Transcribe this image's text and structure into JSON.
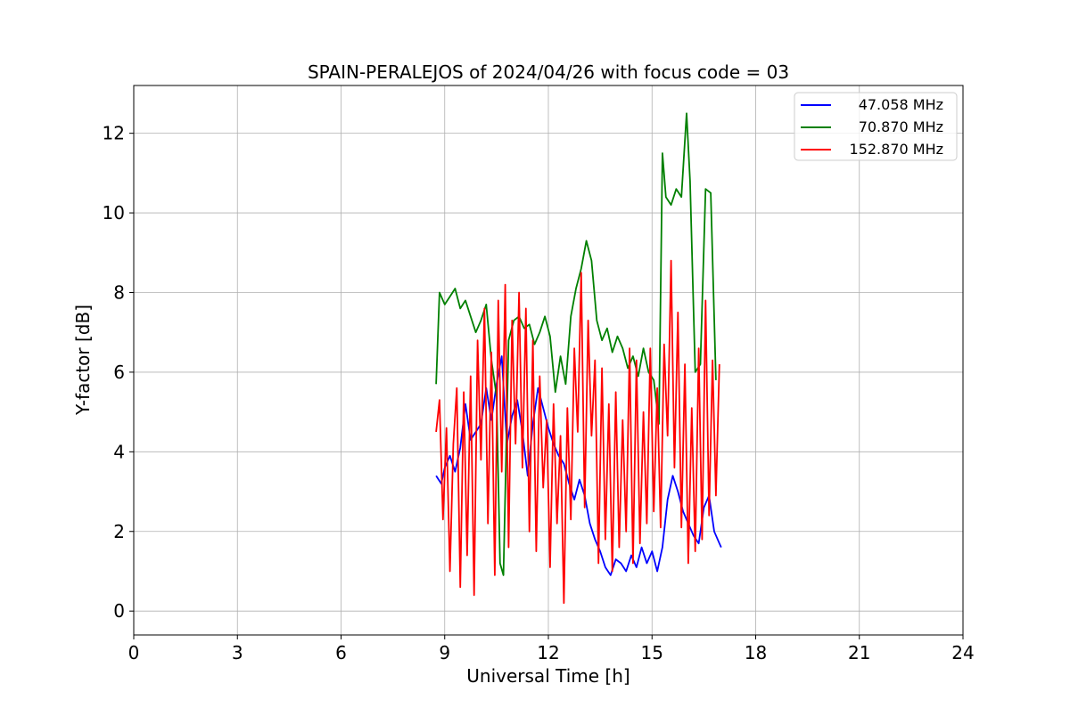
{
  "chart_data": {
    "type": "line",
    "title": "SPAIN-PERALEJOS of 2024/04/26 with focus code = 03",
    "xlabel": "Universal Time [h]",
    "ylabel": "Y-factor [dB]",
    "xlim": [
      0,
      24
    ],
    "ylim": [
      -0.6,
      13.2
    ],
    "xticks": [
      0,
      3,
      6,
      9,
      12,
      15,
      18,
      21,
      24
    ],
    "yticks": [
      0,
      2,
      4,
      6,
      8,
      10,
      12
    ],
    "grid": true,
    "legend_position": "top-right",
    "series": [
      {
        "name": "47.058 MHz",
        "color": "#0000ff",
        "x": [
          8.75,
          8.9,
          9.0,
          9.15,
          9.3,
          9.45,
          9.6,
          9.75,
          9.9,
          10.05,
          10.2,
          10.35,
          10.5,
          10.65,
          10.8,
          10.95,
          11.1,
          11.25,
          11.4,
          11.55,
          11.7,
          11.85,
          12.0,
          12.15,
          12.3,
          12.45,
          12.6,
          12.75,
          12.9,
          13.05,
          13.2,
          13.35,
          13.5,
          13.65,
          13.8,
          13.95,
          14.1,
          14.25,
          14.4,
          14.55,
          14.7,
          14.85,
          15.0,
          15.15,
          15.3,
          15.45,
          15.6,
          15.75,
          15.9,
          16.05,
          16.2,
          16.35,
          16.5,
          16.65,
          16.8,
          16.95,
          17.0
        ],
        "y": [
          3.4,
          3.2,
          3.6,
          3.9,
          3.5,
          4.1,
          5.2,
          4.3,
          4.5,
          4.7,
          5.6,
          4.8,
          5.7,
          6.4,
          4.2,
          4.9,
          5.3,
          4.5,
          3.4,
          4.7,
          5.6,
          5.1,
          4.6,
          4.2,
          3.9,
          3.7,
          3.2,
          2.8,
          3.3,
          2.9,
          2.2,
          1.8,
          1.5,
          1.1,
          0.9,
          1.3,
          1.2,
          1.0,
          1.4,
          1.1,
          1.6,
          1.2,
          1.5,
          1.0,
          1.6,
          2.8,
          3.4,
          3.0,
          2.5,
          2.2,
          1.9,
          1.7,
          2.6,
          2.9,
          2.0,
          1.7,
          1.6
        ]
      },
      {
        "name": "70.870 MHz",
        "color": "#008000",
        "x": [
          8.75,
          8.85,
          9.0,
          9.15,
          9.3,
          9.45,
          9.6,
          9.75,
          9.9,
          10.05,
          10.2,
          10.35,
          10.5,
          10.6,
          10.7,
          10.85,
          11.0,
          11.15,
          11.3,
          11.45,
          11.6,
          11.75,
          11.9,
          12.05,
          12.2,
          12.35,
          12.5,
          12.65,
          12.8,
          12.95,
          13.1,
          13.25,
          13.4,
          13.55,
          13.7,
          13.85,
          14.0,
          14.15,
          14.3,
          14.45,
          14.6,
          14.75,
          14.9,
          15.05,
          15.2,
          15.3,
          15.4,
          15.55,
          15.7,
          15.85,
          16.0,
          16.1,
          16.25,
          16.4,
          16.55,
          16.7,
          16.85
        ],
        "y": [
          5.7,
          8.0,
          7.7,
          7.9,
          8.1,
          7.6,
          7.8,
          7.4,
          7.0,
          7.3,
          7.7,
          6.3,
          5.4,
          1.2,
          0.9,
          6.8,
          7.3,
          7.4,
          7.1,
          7.2,
          6.7,
          7.0,
          7.4,
          6.9,
          5.5,
          6.4,
          5.7,
          7.4,
          8.1,
          8.6,
          9.3,
          8.8,
          7.3,
          6.8,
          7.1,
          6.5,
          6.9,
          6.6,
          6.1,
          6.4,
          5.9,
          6.6,
          6.0,
          5.8,
          4.7,
          11.5,
          10.4,
          10.2,
          10.6,
          10.4,
          12.5,
          10.8,
          6.0,
          6.2,
          10.6,
          10.5,
          5.8
        ]
      },
      {
        "name": "152.870 MHz",
        "color": "#ff0000",
        "x": [
          8.75,
          8.85,
          8.95,
          9.05,
          9.15,
          9.25,
          9.35,
          9.45,
          9.55,
          9.65,
          9.75,
          9.85,
          9.95,
          10.05,
          10.15,
          10.25,
          10.35,
          10.45,
          10.55,
          10.65,
          10.75,
          10.85,
          10.95,
          11.05,
          11.15,
          11.25,
          11.35,
          11.45,
          11.55,
          11.65,
          11.75,
          11.85,
          11.95,
          12.05,
          12.15,
          12.25,
          12.35,
          12.45,
          12.55,
          12.65,
          12.75,
          12.85,
          12.95,
          13.05,
          13.15,
          13.25,
          13.35,
          13.45,
          13.55,
          13.65,
          13.75,
          13.85,
          13.95,
          14.05,
          14.15,
          14.25,
          14.35,
          14.45,
          14.55,
          14.65,
          14.75,
          14.85,
          14.95,
          15.05,
          15.15,
          15.25,
          15.35,
          15.45,
          15.55,
          15.65,
          15.75,
          15.85,
          15.95,
          16.05,
          16.15,
          16.25,
          16.35,
          16.45,
          16.55,
          16.65,
          16.75,
          16.85,
          16.95
        ],
        "y": [
          4.5,
          5.3,
          2.3,
          4.6,
          1.0,
          4.2,
          5.6,
          0.6,
          5.5,
          1.4,
          5.9,
          0.4,
          6.8,
          3.8,
          7.6,
          2.2,
          6.5,
          0.9,
          7.8,
          3.5,
          8.2,
          1.6,
          7.3,
          4.2,
          8.0,
          3.6,
          7.6,
          2.0,
          6.8,
          1.5,
          5.9,
          3.1,
          4.8,
          1.1,
          5.2,
          2.2,
          4.4,
          0.2,
          5.1,
          2.3,
          6.6,
          4.5,
          8.5,
          2.6,
          7.3,
          4.4,
          6.3,
          1.2,
          6.1,
          1.8,
          5.2,
          1.0,
          5.5,
          1.6,
          4.8,
          2.0,
          6.6,
          1.2,
          6.3,
          1.7,
          5.0,
          2.2,
          6.6,
          2.5,
          5.6,
          2.1,
          6.7,
          4.4,
          8.8,
          3.6,
          7.5,
          2.1,
          6.2,
          1.2,
          5.1,
          1.5,
          6.6,
          1.8,
          7.8,
          2.4,
          6.3,
          2.9,
          6.2
        ]
      }
    ]
  }
}
